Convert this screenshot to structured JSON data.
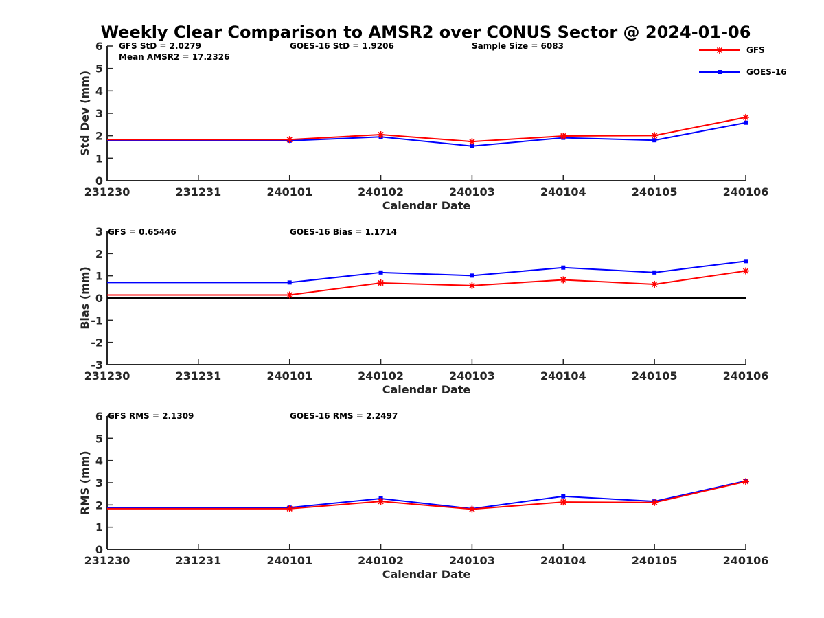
{
  "figure": {
    "title": "Weekly Clear Comparison to AMSR2 over CONUS Sector @ 2024-01-06"
  },
  "colors": {
    "gfs": "#ff0000",
    "goes": "#0000ff",
    "axis": "#262626",
    "zero_line": "#000000"
  },
  "legend": {
    "placement": "top-right",
    "items": [
      {
        "name": "GFS",
        "marker": "asterisk",
        "color": "#ff0000"
      },
      {
        "name": "GOES-16",
        "marker": "square",
        "color": "#0000ff"
      }
    ]
  },
  "chart_data": [
    {
      "type": "line",
      "ylabel": "Std Dev (mm)",
      "xlabel": "Calendar Date",
      "ylim": [
        0,
        6
      ],
      "yticks": [
        "0",
        "1",
        "2",
        "3",
        "4",
        "5",
        "6"
      ],
      "xticks": [
        "231230",
        "231231",
        "240101",
        "240102",
        "240103",
        "240104",
        "240105",
        "240106"
      ],
      "series": [
        {
          "name": "GFS",
          "x": [
            "231230",
            "240101",
            "240102",
            "240103",
            "240104",
            "240105",
            "240106"
          ],
          "values": [
            1.83,
            1.83,
            2.05,
            1.74,
            1.99,
            2.01,
            2.82
          ]
        },
        {
          "name": "GOES-16",
          "x": [
            "231230",
            "240101",
            "240102",
            "240103",
            "240104",
            "240105",
            "240106"
          ],
          "values": [
            1.78,
            1.78,
            1.95,
            1.54,
            1.91,
            1.8,
            2.58
          ]
        }
      ],
      "stats": [
        "GFS StD = 2.0279",
        "GOES-16 StD = 1.9206",
        "Sample Size = 6083",
        "Mean AMSR2 = 17.2326"
      ]
    },
    {
      "type": "line",
      "ylabel": "Bias (mm)",
      "xlabel": "Calendar Date",
      "ylim": [
        -3,
        3
      ],
      "yticks": [
        "-3",
        "-2",
        "-1",
        "0",
        "1",
        "2",
        "3"
      ],
      "xticks": [
        "231230",
        "231231",
        "240101",
        "240102",
        "240103",
        "240104",
        "240105",
        "240106"
      ],
      "zero_line": true,
      "series": [
        {
          "name": "GFS",
          "x": [
            "231230",
            "240101",
            "240102",
            "240103",
            "240104",
            "240105",
            "240106"
          ],
          "values": [
            0.14,
            0.14,
            0.68,
            0.56,
            0.82,
            0.62,
            1.22
          ]
        },
        {
          "name": "GOES-16",
          "x": [
            "231230",
            "240101",
            "240102",
            "240103",
            "240104",
            "240105",
            "240106"
          ],
          "values": [
            0.7,
            0.7,
            1.15,
            1.01,
            1.37,
            1.15,
            1.66
          ]
        }
      ],
      "stats": [
        "GFS = 0.65446",
        "GOES-16 Bias  = 1.1714"
      ]
    },
    {
      "type": "line",
      "ylabel": "RMS (mm)",
      "xlabel": "Calendar Date",
      "ylim": [
        0,
        6
      ],
      "yticks": [
        "0",
        "1",
        "2",
        "3",
        "4",
        "5",
        "6"
      ],
      "xticks": [
        "231230",
        "231231",
        "240101",
        "240102",
        "240103",
        "240104",
        "240105",
        "240106"
      ],
      "series": [
        {
          "name": "GFS",
          "x": [
            "231230",
            "240101",
            "240102",
            "240103",
            "240104",
            "240105",
            "240106"
          ],
          "values": [
            1.83,
            1.83,
            2.16,
            1.81,
            2.13,
            2.11,
            3.05
          ]
        },
        {
          "name": "GOES-16",
          "x": [
            "231230",
            "240101",
            "240102",
            "240103",
            "240104",
            "240105",
            "240106"
          ],
          "values": [
            1.88,
            1.88,
            2.29,
            1.83,
            2.39,
            2.16,
            3.08
          ]
        }
      ],
      "stats": [
        "GFS RMS = 2.1309",
        "GOES-16 RMS = 2.2497"
      ]
    }
  ]
}
